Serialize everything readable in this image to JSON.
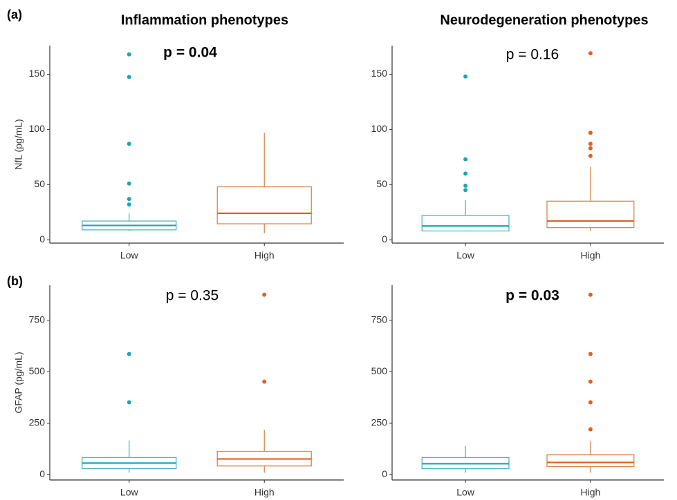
{
  "panel_labels": [
    "(a)",
    "(b)"
  ],
  "column_titles": [
    "Inflammation phenotypes",
    "Neurodegeneration phenotypes"
  ],
  "chart_data": [
    {
      "type": "box",
      "ylabel": "NfL (pg/mL)",
      "annotation": "p = 0.04",
      "annotation_bold": true,
      "categories": [
        "Low",
        "High"
      ],
      "colors": [
        "#1ba5b3",
        "#e0601f"
      ],
      "outline_colors": [
        "#4db8c2",
        "#d9864f"
      ],
      "ylim": [
        -3,
        176
      ],
      "yticks": [
        0,
        50,
        100,
        150
      ],
      "boxes": [
        {
          "whislo": 8,
          "q1": 9,
          "med": 13,
          "q3": 17,
          "whishi": 24,
          "fliers": [
            168,
            147.5,
            87,
            51,
            37,
            32
          ]
        },
        {
          "whislo": 6,
          "q1": 14.5,
          "med": 24,
          "q3": 48,
          "whishi": 97,
          "fliers": []
        }
      ]
    },
    {
      "type": "box",
      "annotation": "p = 0.16",
      "annotation_bold": false,
      "categories": [
        "Low",
        "High"
      ],
      "colors": [
        "#1ba5b3",
        "#e0601f"
      ],
      "outline_colors": [
        "#4db8c2",
        "#d9864f"
      ],
      "ylim": [
        -3,
        176
      ],
      "yticks": [
        0,
        50,
        100,
        150
      ],
      "boxes": [
        {
          "whislo": 7.5,
          "q1": 8,
          "med": 12.5,
          "q3": 22,
          "whishi": 36,
          "fliers": [
            148,
            73,
            60,
            49,
            45
          ]
        },
        {
          "whislo": 8,
          "q1": 11,
          "med": 17,
          "q3": 35,
          "whishi": 66,
          "fliers": [
            169,
            97,
            87,
            83,
            76
          ]
        }
      ]
    },
    {
      "type": "box",
      "ylabel": "GFAP (pg/mL)",
      "annotation": "p = 0.35",
      "annotation_bold": false,
      "categories": [
        "Low",
        "High"
      ],
      "colors": [
        "#1ba5b3",
        "#e0601f"
      ],
      "outline_colors": [
        "#4db8c2",
        "#d9864f"
      ],
      "ylim": [
        -25,
        920
      ],
      "yticks": [
        0,
        250,
        500,
        750
      ],
      "boxes": [
        {
          "whislo": 10,
          "q1": 30,
          "med": 57,
          "q3": 84,
          "whishi": 167,
          "fliers": [
            586,
            352
          ]
        },
        {
          "whislo": 10,
          "q1": 43,
          "med": 77,
          "q3": 114,
          "whishi": 218,
          "fliers": [
            874,
            452
          ]
        }
      ]
    },
    {
      "type": "box",
      "annotation": "p = 0.03",
      "annotation_bold": true,
      "categories": [
        "Low",
        "High"
      ],
      "colors": [
        "#1ba5b3",
        "#e0601f"
      ],
      "outline_colors": [
        "#4db8c2",
        "#d9864f"
      ],
      "ylim": [
        -25,
        920
      ],
      "yticks": [
        0,
        250,
        500,
        750
      ],
      "boxes": [
        {
          "whislo": 10,
          "q1": 30,
          "med": 54,
          "q3": 84,
          "whishi": 141,
          "fliers": []
        },
        {
          "whislo": 10,
          "q1": 40,
          "med": 60,
          "q3": 97,
          "whishi": 164,
          "fliers": [
            874,
            586,
            452,
            352,
            221
          ]
        }
      ]
    }
  ]
}
